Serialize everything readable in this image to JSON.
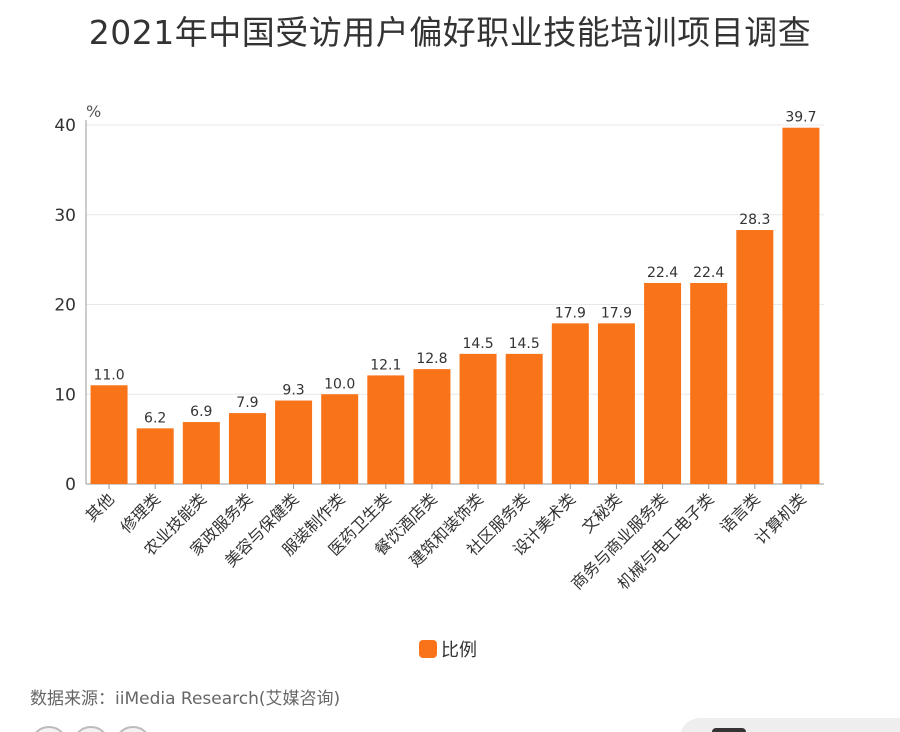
{
  "page": {
    "title": "2021年中国受访用户偏好职业技能培训项目调查",
    "source": "数据来源：iiMedia Research(艾媒咨询)"
  },
  "colors": {
    "bar": "#F97319",
    "axis": "#999999",
    "grid": "#e8e8e8",
    "text": "#333333"
  },
  "chart_data": {
    "type": "bar",
    "title": "2021年中国受访用户偏好职业技能培训项目调查",
    "xlabel": "",
    "ylabel": "%",
    "ylim": [
      0,
      40
    ],
    "yticks": [
      0,
      10,
      20,
      30,
      40
    ],
    "grid": true,
    "legend_position": "bottom",
    "categories": [
      "其他",
      "修理类",
      "农业技能类",
      "家政服务类",
      "美容与保健类",
      "服装制作类",
      "医药卫生类",
      "餐饮酒店类",
      "建筑和装饰类",
      "社区服务类",
      "设计美术类",
      "文秘类",
      "商务与商业服务类",
      "机械与电工电子类",
      "语言类",
      "计算机类"
    ],
    "series": [
      {
        "name": "比例",
        "values": [
          11.0,
          6.2,
          6.9,
          7.9,
          9.3,
          10.0,
          12.1,
          12.8,
          14.5,
          14.5,
          17.9,
          17.9,
          22.4,
          22.4,
          28.3,
          39.7
        ],
        "labels": [
          "11.0",
          "6.2",
          "6.9",
          "7.9",
          "9.3",
          "10.0",
          "12.1",
          "12.8",
          "14.5",
          "14.5",
          "17.9",
          "17.9",
          "22.4",
          "22.4",
          "28.3",
          "39.7"
        ]
      }
    ]
  }
}
